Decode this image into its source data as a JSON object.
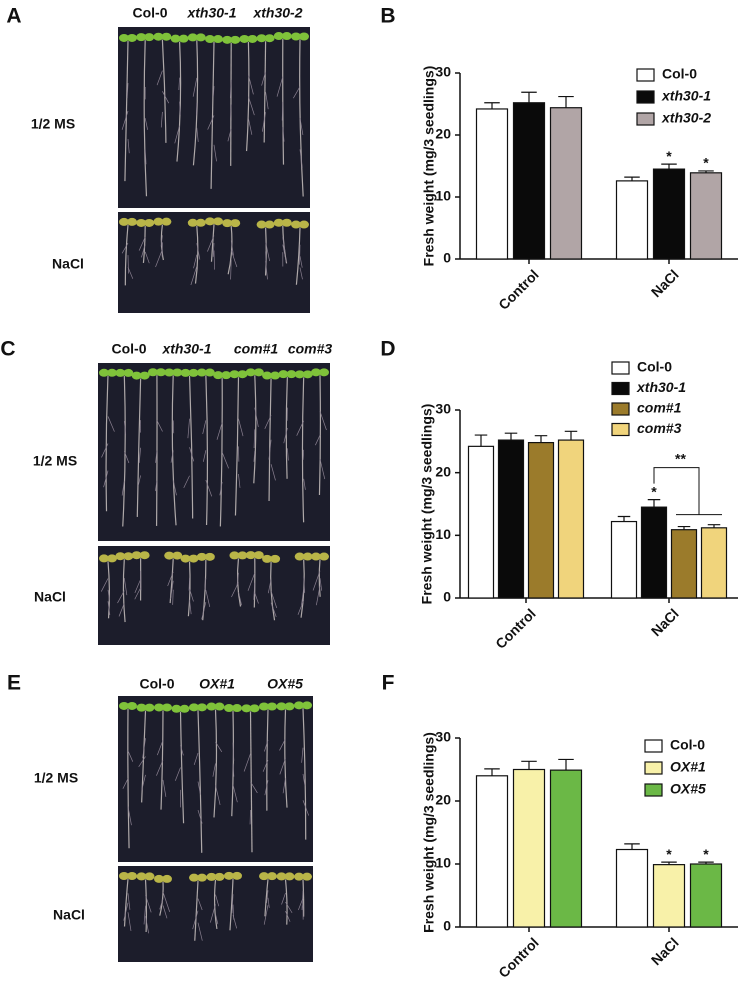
{
  "photo_panels": [
    {
      "panel_label": "A",
      "genotypes": [
        "Col-0",
        "xth30-1",
        "xth30-2"
      ],
      "conditions": [
        "1/2 MS",
        "NaCl"
      ]
    },
    {
      "panel_label": "C",
      "genotypes": [
        "Col-0",
        "xth30-1",
        "com#1",
        "com#3"
      ],
      "conditions": [
        "1/2 MS",
        "NaCl"
      ]
    },
    {
      "panel_label": "E",
      "genotypes": [
        "Col-0",
        "OX#1",
        "OX#5"
      ],
      "conditions": [
        "1/2 MS",
        "NaCl"
      ]
    }
  ],
  "chart_data": [
    {
      "type": "bar",
      "panel_label": "B",
      "y_label": "Fresh weight (mg/3 seedlings)",
      "categories": [
        "Control",
        "NaCl"
      ],
      "ylim": [
        0,
        30
      ],
      "yticks": [
        0,
        10,
        20,
        30
      ],
      "series": [
        {
          "name": "Col-0",
          "color": "#ffffff",
          "italic": false,
          "values": [
            24.2,
            12.6
          ],
          "errors": [
            1.0,
            0.6
          ],
          "significance": [
            null,
            null
          ]
        },
        {
          "name": "xth30-1",
          "color": "#0a0a0a",
          "italic": true,
          "values": [
            25.2,
            14.5
          ],
          "errors": [
            1.7,
            0.8
          ],
          "significance": [
            null,
            "*"
          ]
        },
        {
          "name": "xth30-2",
          "color": "#b1a5a6",
          "italic": true,
          "values": [
            24.4,
            13.9
          ],
          "errors": [
            1.8,
            0.3
          ],
          "significance": [
            null,
            "*"
          ]
        }
      ]
    },
    {
      "type": "bar",
      "panel_label": "D",
      "y_label": "Fresh weight (mg/3 seedlings)",
      "categories": [
        "Control",
        "NaCl"
      ],
      "ylim": [
        0,
        30
      ],
      "yticks": [
        0,
        10,
        20,
        30
      ],
      "bracket_label": "**",
      "series": [
        {
          "name": "Col-0",
          "color": "#ffffff",
          "italic": false,
          "values": [
            24.2,
            12.2
          ],
          "errors": [
            1.8,
            0.8
          ],
          "significance": [
            null,
            null
          ]
        },
        {
          "name": "xth30-1",
          "color": "#0a0a0a",
          "italic": true,
          "values": [
            25.2,
            14.5
          ],
          "errors": [
            1.1,
            1.2
          ],
          "significance": [
            null,
            "*"
          ]
        },
        {
          "name": "com#1",
          "color": "#9b7b2b",
          "italic": true,
          "values": [
            24.8,
            10.9
          ],
          "errors": [
            1.1,
            0.5
          ],
          "significance": [
            null,
            null
          ]
        },
        {
          "name": "com#3",
          "color": "#f0d47c",
          "italic": true,
          "values": [
            25.2,
            11.2
          ],
          "errors": [
            1.4,
            0.5
          ],
          "significance": [
            null,
            null
          ]
        }
      ]
    },
    {
      "type": "bar",
      "panel_label": "F",
      "y_label": "Fresh weight (mg/3 seedlings)",
      "categories": [
        "Control",
        "NaCl"
      ],
      "ylim": [
        0,
        30
      ],
      "yticks": [
        0,
        10,
        20,
        30
      ],
      "series": [
        {
          "name": "Col-0",
          "color": "#ffffff",
          "italic": false,
          "values": [
            24.0,
            12.3
          ],
          "errors": [
            1.1,
            0.9
          ],
          "significance": [
            null,
            null
          ]
        },
        {
          "name": "OX#1",
          "color": "#f8f1a9",
          "italic": true,
          "values": [
            25.0,
            9.9
          ],
          "errors": [
            1.3,
            0.4
          ],
          "significance": [
            null,
            "*"
          ]
        },
        {
          "name": "OX#5",
          "color": "#6bb846",
          "italic": true,
          "values": [
            24.9,
            10.0
          ],
          "errors": [
            1.7,
            0.3
          ],
          "significance": [
            null,
            "*"
          ]
        }
      ]
    }
  ]
}
